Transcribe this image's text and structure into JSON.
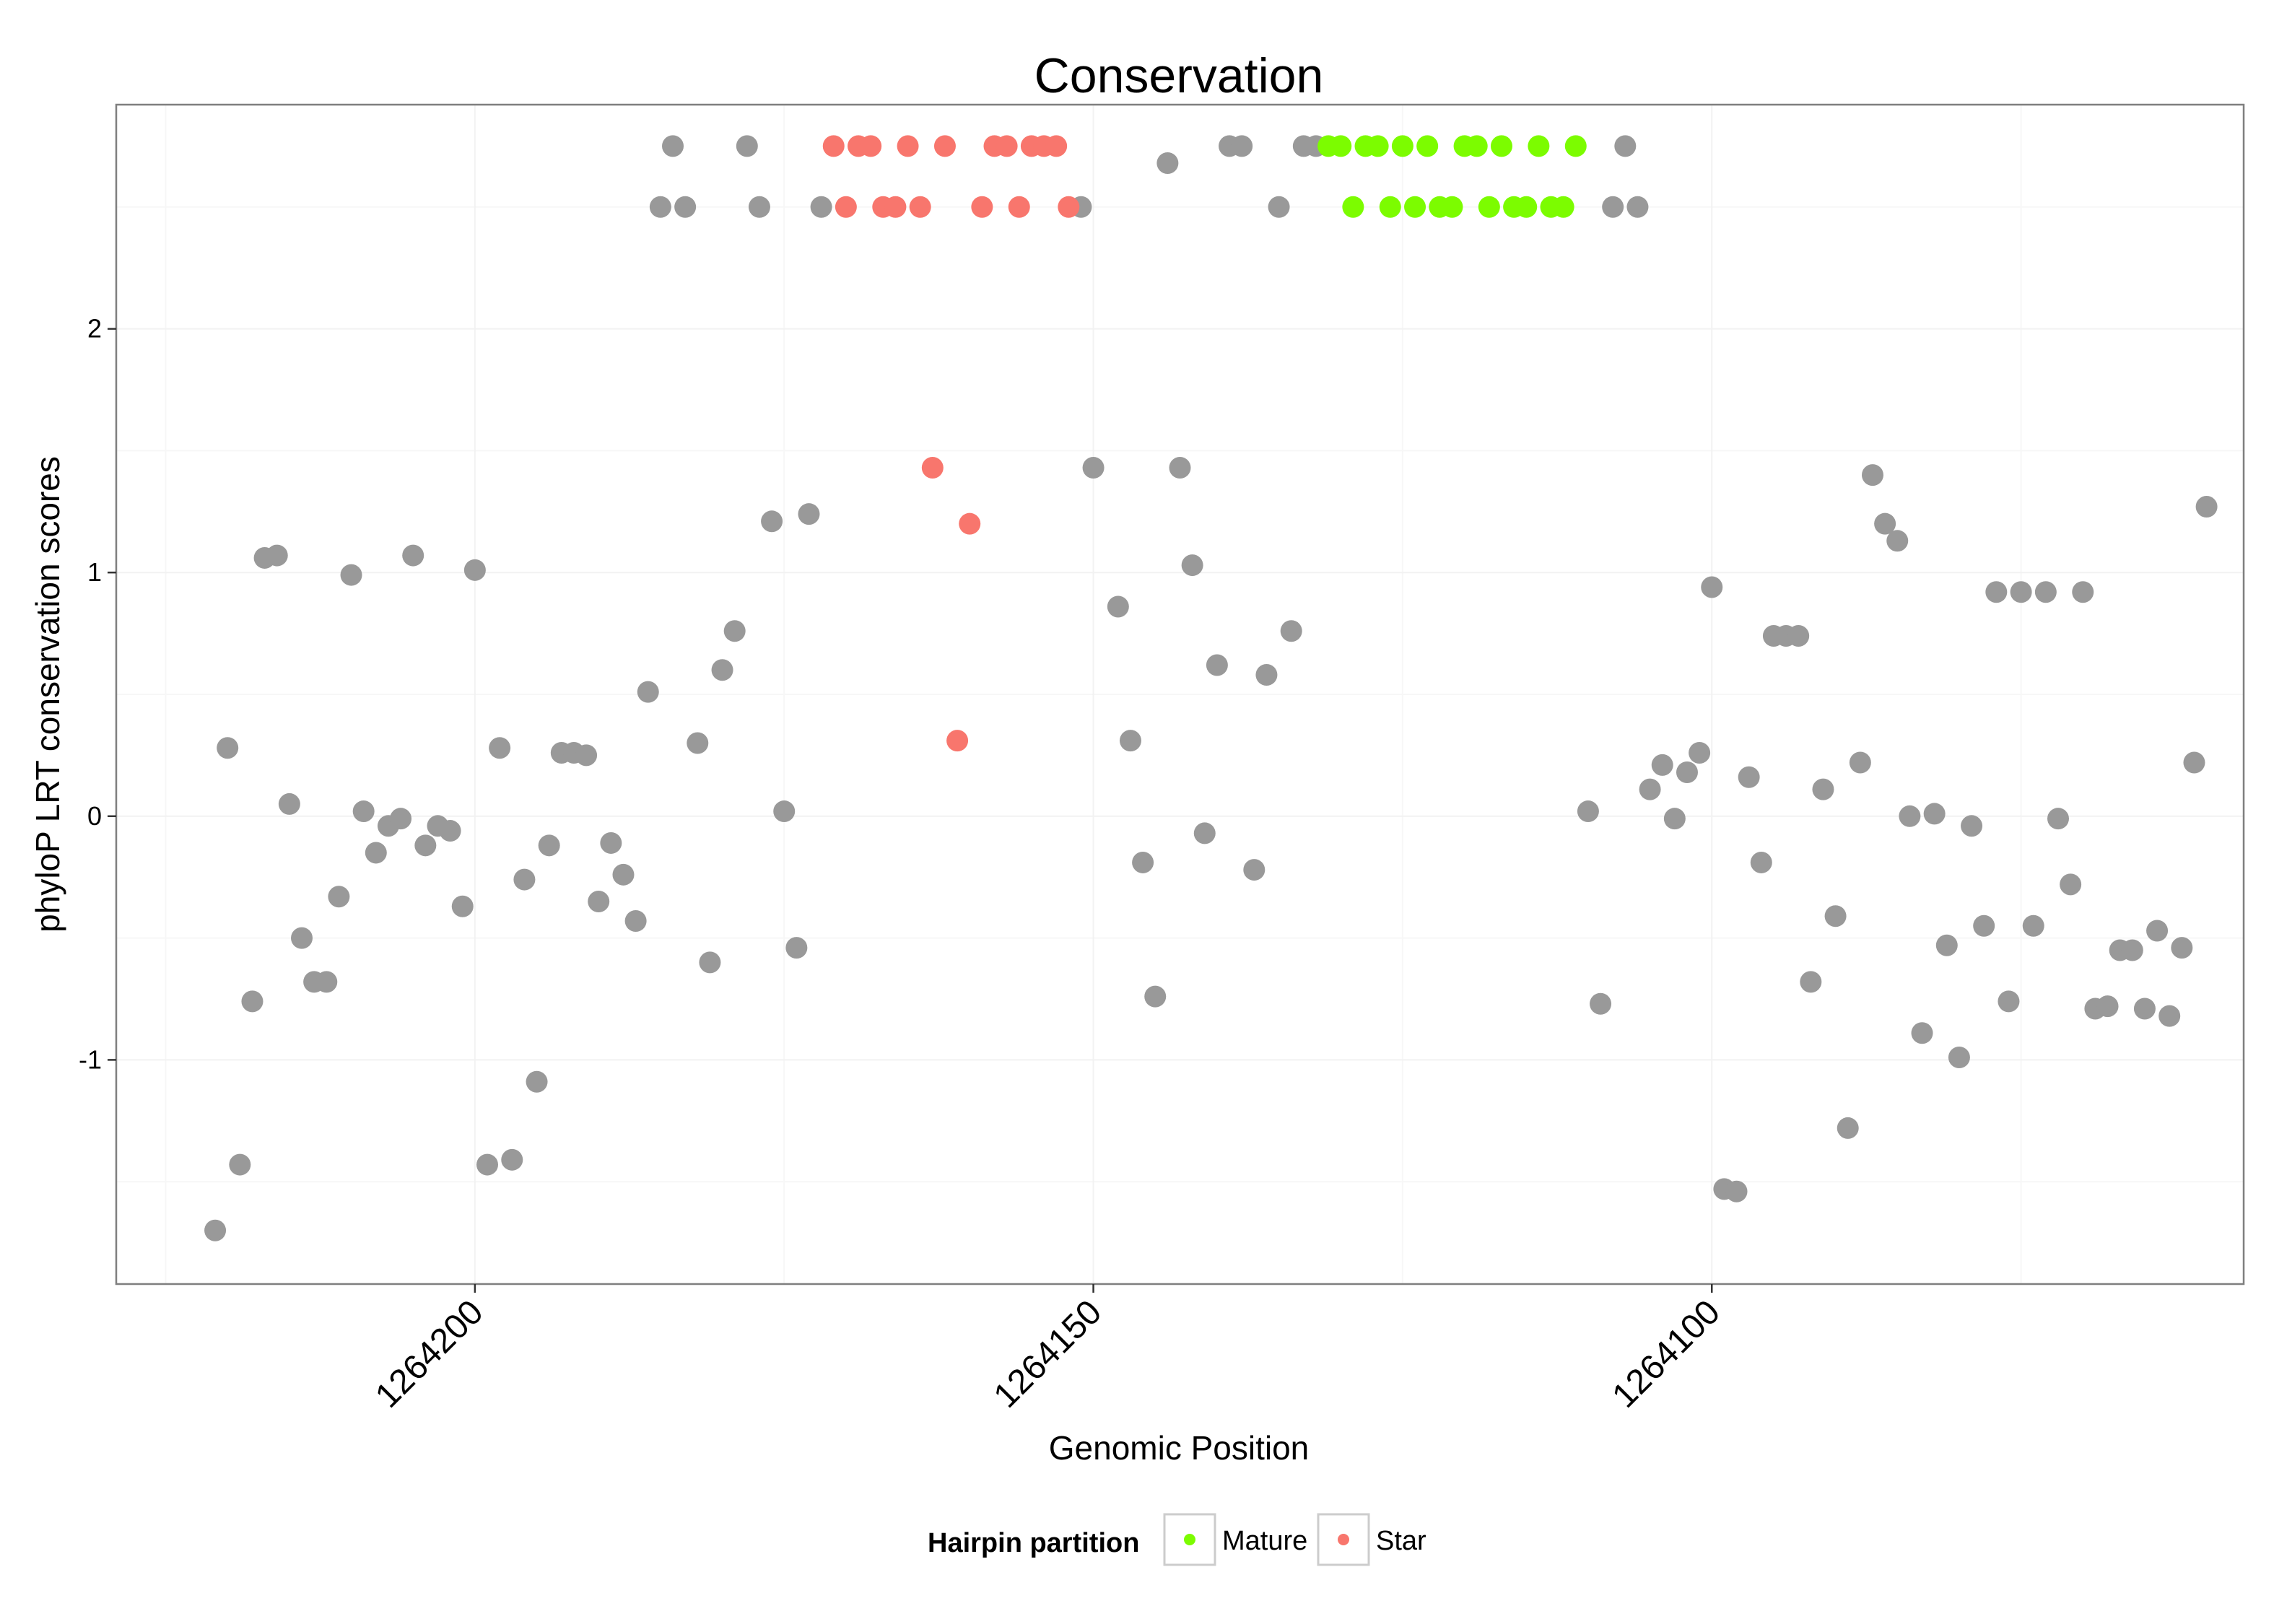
{
  "chart_data": {
    "type": "scatter",
    "title": "Conservation",
    "xlabel": "Genomic Position",
    "ylabel": "phyloP LRT conservation scores",
    "xlim": [
      1264229,
      1264057
    ],
    "x_reversed": true,
    "ylim": [
      -1.92,
      2.92
    ],
    "x_ticks": [
      1264200,
      1264150,
      1264100
    ],
    "x_tick_labels": [
      "1264200",
      "1264150",
      "1264100"
    ],
    "y_ticks": [
      -1,
      0,
      1,
      2
    ],
    "y_tick_labels": [
      "-1",
      "0",
      "1",
      "2"
    ],
    "grid": true,
    "legend": {
      "title": "Hairpin partition",
      "placement": "bottom",
      "entries": [
        {
          "label": "Mature",
          "color": "#7cfc00"
        },
        {
          "label": "Star",
          "color": "#f8766d"
        }
      ]
    },
    "colors": {
      "other": "#999999",
      "Mature": "#7cfc00",
      "Star": "#f8766d"
    },
    "series": [
      {
        "group": "other",
        "points": [
          [
            1264221,
            -1.7
          ],
          [
            1264220,
            0.28
          ],
          [
            1264219,
            -1.43
          ],
          [
            1264218,
            -0.76
          ],
          [
            1264217,
            1.06
          ],
          [
            1264216,
            1.07
          ],
          [
            1264215,
            0.05
          ],
          [
            1264214,
            -0.5
          ],
          [
            1264213,
            -0.68
          ],
          [
            1264212,
            -0.68
          ],
          [
            1264211,
            -0.33
          ],
          [
            1264210,
            0.99
          ],
          [
            1264209,
            0.02
          ],
          [
            1264208,
            -0.15
          ],
          [
            1264207,
            -0.04
          ],
          [
            1264206,
            -0.01
          ],
          [
            1264205,
            1.07
          ],
          [
            1264204,
            -0.12
          ],
          [
            1264203,
            -0.04
          ],
          [
            1264202,
            -0.06
          ],
          [
            1264201,
            -0.37
          ],
          [
            1264200,
            1.01
          ],
          [
            1264199,
            -1.43
          ],
          [
            1264198,
            0.28
          ],
          [
            1264197,
            -1.41
          ],
          [
            1264196,
            -0.26
          ],
          [
            1264195,
            -1.09
          ],
          [
            1264194,
            -0.12
          ],
          [
            1264193,
            0.26
          ],
          [
            1264192,
            0.26
          ],
          [
            1264191,
            0.25
          ],
          [
            1264190,
            -0.35
          ],
          [
            1264189,
            -0.11
          ],
          [
            1264188,
            -0.24
          ],
          [
            1264187,
            -0.43
          ],
          [
            1264186,
            0.51
          ],
          [
            1264185,
            2.5
          ],
          [
            1264184,
            2.75
          ],
          [
            1264183,
            2.5
          ],
          [
            1264182,
            0.3
          ],
          [
            1264181,
            -0.6
          ],
          [
            1264180,
            0.6
          ],
          [
            1264179,
            0.76
          ],
          [
            1264178,
            2.75
          ],
          [
            1264177,
            2.5
          ],
          [
            1264176,
            1.21
          ],
          [
            1264175,
            0.02
          ],
          [
            1264174,
            -0.54
          ],
          [
            1264173,
            1.24
          ],
          [
            1264172,
            2.5
          ],
          [
            1264151,
            2.5
          ],
          [
            1264150,
            1.43
          ],
          [
            1264148,
            0.86
          ],
          [
            1264147,
            0.31
          ],
          [
            1264146,
            -0.19
          ],
          [
            1264145,
            -0.74
          ],
          [
            1264144,
            2.68
          ],
          [
            1264143,
            1.43
          ],
          [
            1264142,
            1.03
          ],
          [
            1264141,
            -0.07
          ],
          [
            1264140,
            0.62
          ],
          [
            1264139,
            2.75
          ],
          [
            1264138,
            2.75
          ],
          [
            1264137,
            -0.22
          ],
          [
            1264136,
            0.58
          ],
          [
            1264135,
            2.5
          ],
          [
            1264134,
            0.76
          ],
          [
            1264133,
            2.75
          ],
          [
            1264132,
            2.75
          ],
          [
            1264110,
            0.02
          ],
          [
            1264109,
            -0.77
          ],
          [
            1264108,
            2.5
          ],
          [
            1264107,
            2.75
          ],
          [
            1264106,
            2.5
          ],
          [
            1264105,
            0.11
          ],
          [
            1264104,
            0.21
          ],
          [
            1264103,
            -0.01
          ],
          [
            1264102,
            0.18
          ],
          [
            1264101,
            0.26
          ],
          [
            1264100,
            0.94
          ],
          [
            1264099,
            -1.53
          ],
          [
            1264098,
            -1.54
          ],
          [
            1264097,
            0.16
          ],
          [
            1264096,
            -0.19
          ],
          [
            1264095,
            0.74
          ],
          [
            1264094,
            0.74
          ],
          [
            1264093,
            0.74
          ],
          [
            1264092,
            -0.68
          ],
          [
            1264091,
            0.11
          ],
          [
            1264090,
            -0.41
          ],
          [
            1264089,
            -1.28
          ],
          [
            1264088,
            0.22
          ],
          [
            1264087,
            1.4
          ],
          [
            1264086,
            1.2
          ],
          [
            1264085,
            1.13
          ],
          [
            1264084,
            0.0
          ],
          [
            1264083,
            -0.89
          ],
          [
            1264082,
            0.01
          ],
          [
            1264081,
            -0.53
          ],
          [
            1264080,
            -0.99
          ],
          [
            1264079,
            -0.04
          ],
          [
            1264078,
            -0.45
          ],
          [
            1264077,
            0.92
          ],
          [
            1264076,
            -0.76
          ],
          [
            1264075,
            0.92
          ],
          [
            1264074,
            -0.45
          ],
          [
            1264073,
            0.92
          ],
          [
            1264072,
            -0.01
          ],
          [
            1264071,
            -0.28
          ],
          [
            1264070,
            0.92
          ],
          [
            1264069,
            -0.79
          ],
          [
            1264068,
            -0.78
          ],
          [
            1264067,
            -0.55
          ],
          [
            1264066,
            -0.55
          ],
          [
            1264065,
            -0.79
          ],
          [
            1264064,
            -0.47
          ],
          [
            1264063,
            -0.82
          ],
          [
            1264062,
            -0.54
          ],
          [
            1264061,
            0.22
          ],
          [
            1264060,
            1.27
          ]
        ]
      },
      {
        "group": "Star",
        "points": [
          [
            1264171,
            2.75
          ],
          [
            1264170,
            2.5
          ],
          [
            1264169,
            2.75
          ],
          [
            1264168,
            2.75
          ],
          [
            1264167,
            2.5
          ],
          [
            1264166,
            2.5
          ],
          [
            1264165,
            2.75
          ],
          [
            1264164,
            2.5
          ],
          [
            1264163,
            1.43
          ],
          [
            1264162,
            2.75
          ],
          [
            1264161,
            0.31
          ],
          [
            1264160,
            1.2
          ],
          [
            1264159,
            2.5
          ],
          [
            1264158,
            2.75
          ],
          [
            1264157,
            2.75
          ],
          [
            1264156,
            2.5
          ],
          [
            1264155,
            2.75
          ],
          [
            1264154,
            2.75
          ],
          [
            1264153,
            2.75
          ],
          [
            1264152,
            2.5
          ]
        ]
      },
      {
        "group": "Mature",
        "points": [
          [
            1264131,
            2.75
          ],
          [
            1264130,
            2.75
          ],
          [
            1264129,
            2.5
          ],
          [
            1264128,
            2.75
          ],
          [
            1264127,
            2.75
          ],
          [
            1264126,
            2.5
          ],
          [
            1264125,
            2.75
          ],
          [
            1264124,
            2.5
          ],
          [
            1264123,
            2.75
          ],
          [
            1264122,
            2.5
          ],
          [
            1264121,
            2.5
          ],
          [
            1264120,
            2.75
          ],
          [
            1264119,
            2.75
          ],
          [
            1264118,
            2.5
          ],
          [
            1264117,
            2.75
          ],
          [
            1264116,
            2.5
          ],
          [
            1264115,
            2.5
          ],
          [
            1264114,
            2.75
          ],
          [
            1264113,
            2.5
          ],
          [
            1264112,
            2.5
          ],
          [
            1264111,
            2.75
          ]
        ]
      }
    ]
  }
}
